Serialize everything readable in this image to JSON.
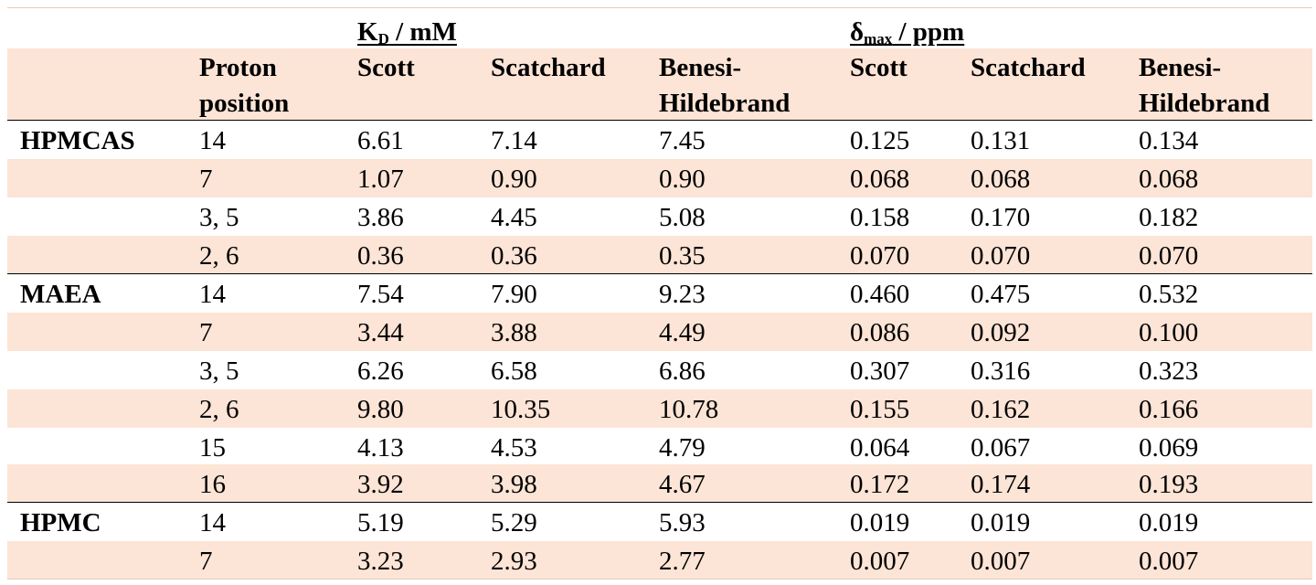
{
  "group_headers": {
    "kd": {
      "main": "K",
      "sub": "D",
      "rest": " / mM"
    },
    "dmax": {
      "main": "δ",
      "sub": "max",
      "rest": " / ppm"
    }
  },
  "column_headers": {
    "proton_position": [
      "Proton",
      "position"
    ],
    "kd_scott": [
      "Scott"
    ],
    "kd_scatchard": [
      "Scatchard"
    ],
    "kd_bh": [
      "Benesi-",
      "Hildebrand"
    ],
    "dmax_scott": [
      "Scott"
    ],
    "dmax_scatchard": [
      "Scatchard"
    ],
    "dmax_bh": [
      "Benesi-",
      "Hildebrand"
    ]
  },
  "rows": [
    {
      "polymer": "HPMCAS",
      "position": "14",
      "values": [
        "6.61",
        "7.14",
        "7.45",
        "0.125",
        "0.131",
        "0.134"
      ]
    },
    {
      "polymer": "",
      "position": "7",
      "values": [
        "1.07",
        "0.90",
        "0.90",
        "0.068",
        "0.068",
        "0.068"
      ]
    },
    {
      "polymer": "",
      "position": "3, 5",
      "values": [
        "3.86",
        "4.45",
        "5.08",
        "0.158",
        "0.170",
        "0.182"
      ]
    },
    {
      "polymer": "",
      "position": "2, 6",
      "values": [
        "0.36",
        "0.36",
        "0.35",
        "0.070",
        "0.070",
        "0.070"
      ]
    },
    {
      "polymer": "MAEA",
      "position": "14",
      "values": [
        "7.54",
        "7.90",
        "9.23",
        "0.460",
        "0.475",
        "0.532"
      ]
    },
    {
      "polymer": "",
      "position": "7",
      "values": [
        "3.44",
        "3.88",
        "4.49",
        "0.086",
        "0.092",
        "0.100"
      ]
    },
    {
      "polymer": "",
      "position": "3, 5",
      "values": [
        "6.26",
        "6.58",
        "6.86",
        "0.307",
        "0.316",
        "0.323"
      ]
    },
    {
      "polymer": "",
      "position": "2, 6",
      "values": [
        "9.80",
        "10.35",
        "10.78",
        "0.155",
        "0.162",
        "0.166"
      ]
    },
    {
      "polymer": "",
      "position": "15",
      "values": [
        "4.13",
        "4.53",
        "4.79",
        "0.064",
        "0.067",
        "0.069"
      ]
    },
    {
      "polymer": "",
      "position": "16",
      "values": [
        "3.92",
        "3.98",
        "4.67",
        "0.172",
        "0.174",
        "0.193"
      ]
    },
    {
      "polymer": "HPMC",
      "position": "14",
      "values": [
        "5.19",
        "5.29",
        "5.93",
        "0.019",
        "0.019",
        "0.019"
      ]
    },
    {
      "polymer": "",
      "position": "7",
      "values": [
        "3.23",
        "2.93",
        "2.77",
        "0.007",
        "0.007",
        "0.007"
      ]
    }
  ],
  "colors": {
    "shade": "#fce4d6",
    "rule": "#000000"
  }
}
